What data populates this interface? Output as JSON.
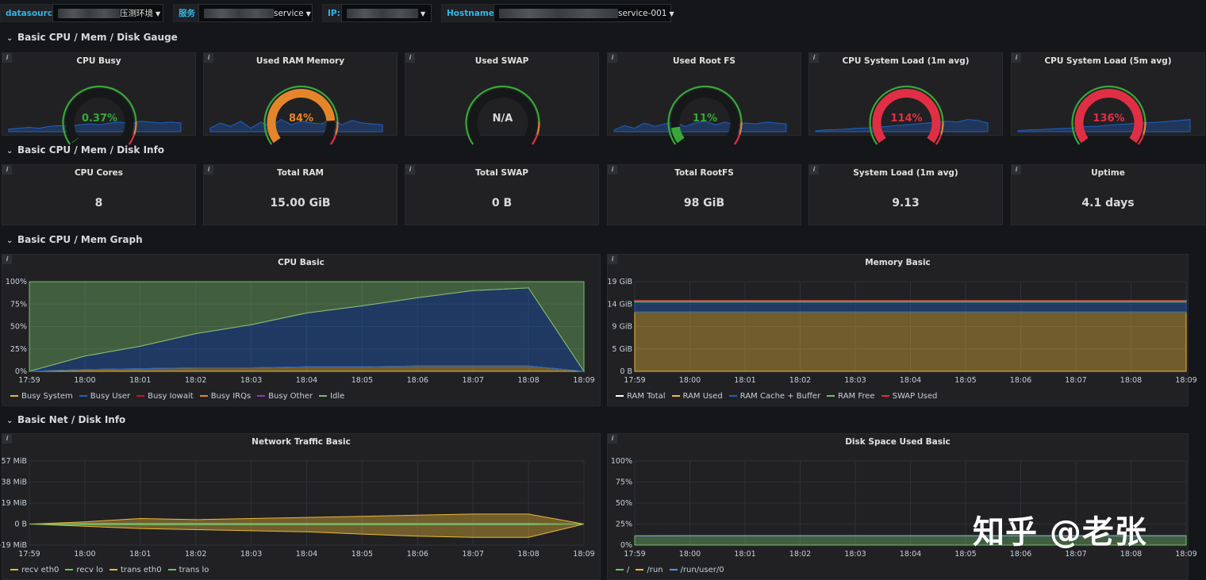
{
  "variables": [
    {
      "label": "datasource",
      "value": "压测环境",
      "blur": true
    },
    {
      "label": "服务",
      "value": "service",
      "blur": true
    },
    {
      "label": "IP:",
      "value": "",
      "blur": true
    },
    {
      "label": "Hostname:",
      "value": "service-001",
      "blur": true
    }
  ],
  "rows": {
    "gauge": "Basic CPU / Mem / Disk Gauge",
    "info": "Basic CPU / Mem / Disk Info",
    "graph": "Basic CPU / Mem Graph",
    "net": "Basic Net / Disk Info"
  },
  "gauges": [
    {
      "title": "CPU Busy",
      "value": "0.37%",
      "fraction": 0.004,
      "color": "#37a837"
    },
    {
      "title": "Used RAM Memory",
      "value": "84%",
      "fraction": 0.84,
      "color": "#e5852b"
    },
    {
      "title": "Used SWAP",
      "value": "N/A",
      "fraction": 0,
      "color": "#d8d9da"
    },
    {
      "title": "Used Root FS",
      "value": "11%",
      "fraction": 0.11,
      "color": "#37a837"
    },
    {
      "title": "CPU System Load (1m avg)",
      "value": "114%",
      "fraction": 1.0,
      "color": "#e02f44"
    },
    {
      "title": "CPU System Load (5m avg)",
      "value": "136%",
      "fraction": 1.0,
      "color": "#e02f44"
    }
  ],
  "stats": [
    {
      "title": "CPU Cores",
      "value": "8"
    },
    {
      "title": "Total RAM",
      "value": "15.00 GiB"
    },
    {
      "title": "Total SWAP",
      "value": "0 B"
    },
    {
      "title": "Total RootFS",
      "value": "98 GiB"
    },
    {
      "title": "System Load (1m avg)",
      "value": "9.13"
    },
    {
      "title": "Uptime",
      "value": "4.1 days"
    }
  ],
  "chart_data": [
    {
      "type": "area",
      "title": "CPU Basic",
      "x": [
        "17:59",
        "18:00",
        "18:01",
        "18:02",
        "18:03",
        "18:04",
        "18:05",
        "18:06",
        "18:07",
        "18:08",
        "18:09"
      ],
      "yticks": [
        "0%",
        "25%",
        "50%",
        "75%",
        "100%"
      ],
      "ylim": [
        0,
        100
      ],
      "series": [
        {
          "name": "Busy System",
          "color": "#eab839",
          "values": [
            0,
            2,
            3,
            4,
            4,
            5,
            5,
            6,
            6,
            6,
            0
          ]
        },
        {
          "name": "Busy User",
          "color": "#1f60c4",
          "values": [
            0,
            15,
            25,
            38,
            48,
            60,
            68,
            76,
            84,
            87,
            0
          ]
        },
        {
          "name": "Busy Iowait",
          "color": "#c4162a",
          "values": [
            0,
            0,
            0,
            0,
            0,
            0,
            0,
            0,
            0,
            0,
            0
          ]
        },
        {
          "name": "Busy IRQs",
          "color": "#e5852b",
          "values": [
            0,
            0,
            0,
            0,
            0,
            0,
            0,
            0,
            0,
            0,
            0
          ]
        },
        {
          "name": "Busy Other",
          "color": "#8f3bb8",
          "values": [
            0,
            0,
            0,
            0,
            0,
            0,
            0,
            0,
            0,
            0,
            0
          ]
        },
        {
          "name": "Idle",
          "color": "#73bf69",
          "values": [
            100,
            83,
            72,
            58,
            48,
            35,
            27,
            18,
            10,
            7,
            100
          ]
        }
      ]
    },
    {
      "type": "area",
      "title": "Memory Basic",
      "x": [
        "17:59",
        "18:00",
        "18:01",
        "18:02",
        "18:03",
        "18:04",
        "18:05",
        "18:06",
        "18:07",
        "18:08",
        "18:09"
      ],
      "yticks": [
        "0 B",
        "5 GiB",
        "9 GiB",
        "14 GiB",
        "19 GiB"
      ],
      "ylim": [
        0,
        19
      ],
      "series": [
        {
          "name": "RAM Total",
          "color": "#ffffff",
          "values": [
            15,
            15,
            15,
            15,
            15,
            15,
            15,
            15,
            15,
            15,
            15
          ]
        },
        {
          "name": "RAM Used",
          "color": "#eab839",
          "values": [
            12.6,
            12.6,
            12.6,
            12.6,
            12.6,
            12.6,
            12.6,
            12.6,
            12.6,
            12.6,
            12.6
          ]
        },
        {
          "name": "RAM Cache + Buffer",
          "color": "#1f60c4",
          "values": [
            2.1,
            2.1,
            2.1,
            2.1,
            2.1,
            2.1,
            2.1,
            2.1,
            2.1,
            2.1,
            2.1
          ]
        },
        {
          "name": "RAM Free",
          "color": "#73bf69",
          "values": [
            0.3,
            0.3,
            0.3,
            0.3,
            0.3,
            0.3,
            0.3,
            0.3,
            0.3,
            0.3,
            0.3
          ]
        },
        {
          "name": "SWAP Used",
          "color": "#e02f44",
          "values": [
            0,
            0,
            0,
            0,
            0,
            0,
            0,
            0,
            0,
            0,
            0
          ]
        }
      ]
    },
    {
      "type": "area",
      "title": "Network Traffic Basic",
      "x": [
        "17:59",
        "18:00",
        "18:01",
        "18:02",
        "18:03",
        "18:04",
        "18:05",
        "18:06",
        "18:07",
        "18:08",
        "18:09"
      ],
      "yticks": [
        "-19 MiB",
        "0 B",
        "19 MiB",
        "38 MiB",
        "57 MiB"
      ],
      "ylim": [
        -19,
        57
      ],
      "series": [
        {
          "name": "recv eth0",
          "color": "#eab839",
          "values": [
            0,
            2,
            5,
            4,
            5,
            6,
            7,
            8,
            9,
            9,
            0
          ]
        },
        {
          "name": "recv lo",
          "color": "#73bf69",
          "values": [
            0,
            0.5,
            0.5,
            0.5,
            0.5,
            0.5,
            0.5,
            0.5,
            0.5,
            0.5,
            0
          ]
        },
        {
          "name": "trans eth0",
          "color": "#eab839",
          "values": [
            0,
            -2,
            -4,
            -5,
            -6,
            -7,
            -9,
            -11,
            -12,
            -12,
            0
          ]
        },
        {
          "name": "trans lo",
          "color": "#73bf69",
          "values": [
            0,
            -0.5,
            -0.5,
            -0.5,
            -0.5,
            -0.5,
            -0.5,
            -0.5,
            -0.5,
            -0.5,
            0
          ]
        }
      ]
    },
    {
      "type": "area",
      "title": "Disk Space Used Basic",
      "x": [
        "17:59",
        "18:00",
        "18:01",
        "18:02",
        "18:03",
        "18:04",
        "18:05",
        "18:06",
        "18:07",
        "18:08",
        "18:09"
      ],
      "yticks": [
        "0%",
        "25%",
        "50%",
        "75%",
        "100%"
      ],
      "ylim": [
        0,
        100
      ],
      "series": [
        {
          "name": "/",
          "color": "#73bf69",
          "values": [
            11,
            11,
            11,
            11,
            11,
            11,
            11,
            11,
            11,
            11,
            11
          ]
        },
        {
          "name": "/run",
          "color": "#eab839",
          "values": [
            0,
            0,
            0,
            0,
            0,
            0,
            0,
            0,
            0,
            0,
            0
          ]
        },
        {
          "name": "/run/user/0",
          "color": "#5794f2",
          "values": [
            0,
            0,
            0,
            0,
            0,
            0,
            0,
            0,
            0,
            0,
            0
          ]
        }
      ]
    }
  ],
  "watermark": "知乎 @老张"
}
